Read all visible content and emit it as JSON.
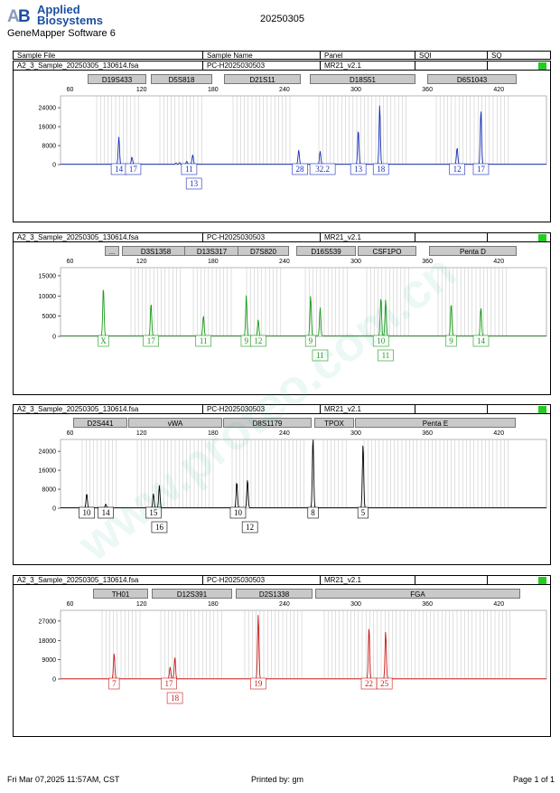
{
  "header": {
    "logo_text_line1": "Applied",
    "logo_text_line2": "Biosystems",
    "software": "GeneMapper Software 6",
    "date_title": "20250305"
  },
  "columns": [
    "Sample File",
    "Sample Name",
    "Panel",
    "SQI",
    "SQ"
  ],
  "footer": {
    "timestamp": "Fri Mar 07,2025 11:57AM, CST",
    "printed_by": "Printed by: gm",
    "page": "Page 1 of 1"
  },
  "watermark": "www.proteo.com.cn",
  "colors": {
    "blue": "#1a2fb8",
    "green": "#1a9a1a",
    "black": "#000000",
    "red": "#cc1a1a",
    "sq_ok": "#22cc22",
    "marker_bg": "#c9c9c9",
    "bin_line": "#c0c0c0"
  },
  "panels": [
    {
      "sample_file": "A2_3_Sample_20250305_130614.fsa",
      "sample_name": "PC-H2025030503",
      "panel": "MR21_v2.1",
      "markers": [
        "D19S433",
        "D5S818",
        "D21S11",
        "D18S51",
        "D6S1043"
      ],
      "dye": "blue"
    },
    {
      "sample_file": "A2_3_Sample_20250305_130614.fsa",
      "sample_name": "PC-H2025030503",
      "panel": "MR21_v2.1",
      "markers": [
        "...",
        "D3S1358",
        "D13S317",
        "D7S820",
        "D16S539",
        "CSF1PO",
        "Penta D"
      ],
      "dye": "green"
    },
    {
      "sample_file": "A2_3_Sample_20250305_130614.fsa",
      "sample_name": "PC-H2025030503",
      "panel": "MR21_v2.1",
      "markers": [
        "D2S441",
        "vWA",
        "D8S1179",
        "TPOX",
        "Penta E"
      ],
      "dye": "black"
    },
    {
      "sample_file": "A2_3_Sample_20250305_130614.fsa",
      "sample_name": "PC-H2025030503",
      "panel": "MR21_v2.1",
      "markers": [
        "TH01",
        "D12S391",
        "D2S1338",
        "FGA"
      ],
      "dye": "red"
    }
  ],
  "chart_data": [
    {
      "type": "line",
      "title": "",
      "x_ticks": [
        60,
        120,
        180,
        240,
        300,
        360,
        420
      ],
      "xlim": [
        52,
        460
      ],
      "y_ticks": [
        0,
        8000,
        16000,
        24000
      ],
      "ylim": [
        0,
        29000
      ],
      "grid": false,
      "peaks": [
        {
          "x": 101,
          "y": 11500
        },
        {
          "x": 112,
          "y": 3000
        },
        {
          "x": 149,
          "y": 500
        },
        {
          "x": 152,
          "y": 700
        },
        {
          "x": 158,
          "y": 1200
        },
        {
          "x": 163,
          "y": 4000
        },
        {
          "x": 252,
          "y": 6000
        },
        {
          "x": 270,
          "y": 5500
        },
        {
          "x": 302,
          "y": 14500
        },
        {
          "x": 320,
          "y": 25000
        },
        {
          "x": 385,
          "y": 7000
        },
        {
          "x": 405,
          "y": 23000
        }
      ],
      "allele_labels": [
        {
          "x": 101,
          "text": "14",
          "row": 0
        },
        {
          "x": 113,
          "text": "17",
          "row": 0
        },
        {
          "x": 160,
          "text": "11",
          "row": 0
        },
        {
          "x": 164,
          "text": "13",
          "row": 1
        },
        {
          "x": 253,
          "text": "28",
          "row": 0
        },
        {
          "x": 272,
          "text": "32.2",
          "row": 0
        },
        {
          "x": 302,
          "text": "13",
          "row": 0
        },
        {
          "x": 321,
          "text": "18",
          "row": 0
        },
        {
          "x": 385,
          "text": "12",
          "row": 0
        },
        {
          "x": 405,
          "text": "17",
          "row": 0
        }
      ]
    },
    {
      "type": "line",
      "title": "",
      "x_ticks": [
        60,
        120,
        180,
        240,
        300,
        360,
        420
      ],
      "xlim": [
        52,
        460
      ],
      "y_ticks": [
        0,
        5000,
        10000,
        15000
      ],
      "ylim": [
        0,
        17000
      ],
      "grid": false,
      "peaks": [
        {
          "x": 88,
          "y": 12000
        },
        {
          "x": 128,
          "y": 8000
        },
        {
          "x": 172,
          "y": 5000
        },
        {
          "x": 208,
          "y": 10000
        },
        {
          "x": 218,
          "y": 4000
        },
        {
          "x": 262,
          "y": 10000
        },
        {
          "x": 270,
          "y": 7000
        },
        {
          "x": 321,
          "y": 9500
        },
        {
          "x": 325,
          "y": 9000
        },
        {
          "x": 380,
          "y": 8000
        },
        {
          "x": 405,
          "y": 7000
        }
      ],
      "allele_labels": [
        {
          "x": 88,
          "text": "X",
          "row": 0
        },
        {
          "x": 128,
          "text": "17",
          "row": 0
        },
        {
          "x": 172,
          "text": "11",
          "row": 0
        },
        {
          "x": 208,
          "text": "9",
          "row": 0
        },
        {
          "x": 218,
          "text": "12",
          "row": 0
        },
        {
          "x": 262,
          "text": "9",
          "row": 0
        },
        {
          "x": 270,
          "text": "11",
          "row": 1
        },
        {
          "x": 321,
          "text": "10",
          "row": 0
        },
        {
          "x": 325,
          "text": "11",
          "row": 1
        },
        {
          "x": 380,
          "text": "9",
          "row": 0
        },
        {
          "x": 405,
          "text": "14",
          "row": 0
        }
      ]
    },
    {
      "type": "line",
      "title": "",
      "x_ticks": [
        60,
        120,
        180,
        240,
        300,
        360,
        420
      ],
      "xlim": [
        52,
        460
      ],
      "y_ticks": [
        0,
        8000,
        16000,
        24000
      ],
      "ylim": [
        0,
        29000
      ],
      "grid": false,
      "peaks": [
        {
          "x": 74,
          "y": 6000
        },
        {
          "x": 90,
          "y": 1500
        },
        {
          "x": 130,
          "y": 6000
        },
        {
          "x": 135,
          "y": 9500
        },
        {
          "x": 200,
          "y": 11000
        },
        {
          "x": 209,
          "y": 12000
        },
        {
          "x": 264,
          "y": 30000
        },
        {
          "x": 306,
          "y": 27000
        }
      ],
      "allele_labels": [
        {
          "x": 74,
          "text": "10",
          "row": 0
        },
        {
          "x": 90,
          "text": "14",
          "row": 0
        },
        {
          "x": 130,
          "text": "15",
          "row": 0
        },
        {
          "x": 135,
          "text": "16",
          "row": 1
        },
        {
          "x": 201,
          "text": "10",
          "row": 0
        },
        {
          "x": 211,
          "text": "12",
          "row": 1
        },
        {
          "x": 264,
          "text": "8",
          "row": 0
        },
        {
          "x": 306,
          "text": "5",
          "row": 0
        }
      ]
    },
    {
      "type": "line",
      "title": "",
      "x_ticks": [
        60,
        120,
        180,
        240,
        300,
        360,
        420
      ],
      "xlim": [
        52,
        460
      ],
      "y_ticks": [
        0,
        9000,
        18000,
        27000
      ],
      "ylim": [
        0,
        32000
      ],
      "grid": false,
      "peaks": [
        {
          "x": 97,
          "y": 12000
        },
        {
          "x": 144,
          "y": 5500
        },
        {
          "x": 148,
          "y": 10000
        },
        {
          "x": 218,
          "y": 30000
        },
        {
          "x": 311,
          "y": 24000
        },
        {
          "x": 325,
          "y": 22000
        }
      ],
      "allele_labels": [
        {
          "x": 97,
          "text": "7",
          "row": 0
        },
        {
          "x": 143,
          "text": "17",
          "row": 0
        },
        {
          "x": 148,
          "text": "18",
          "row": 1
        },
        {
          "x": 218,
          "text": "19",
          "row": 0
        },
        {
          "x": 311,
          "text": "22",
          "row": 0
        },
        {
          "x": 324,
          "text": "25",
          "row": 0
        }
      ]
    }
  ]
}
